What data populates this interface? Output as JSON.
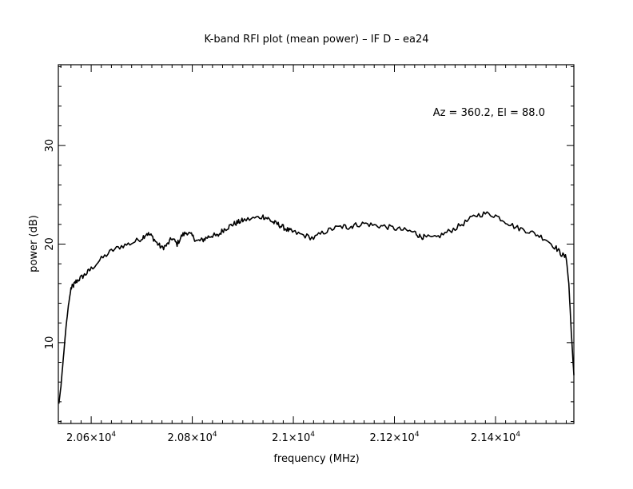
{
  "chart_data": {
    "type": "line",
    "title": "K-band RFI plot (mean power) – IF D – ea24",
    "annotation": "Az = 360.2, El = 88.0",
    "xlabel": "frequency (MHz)",
    "ylabel": "power (dB)",
    "xlim": [
      20535,
      21555
    ],
    "ylim": [
      1.8,
      38.2
    ],
    "x_ticks": [
      {
        "value": 20600,
        "label": "2.06×10",
        "exp": "4"
      },
      {
        "value": 20800,
        "label": "2.08×10",
        "exp": "4"
      },
      {
        "value": 21000,
        "label": "2.1×10",
        "exp": "4"
      },
      {
        "value": 21200,
        "label": "2.12×10",
        "exp": "4"
      },
      {
        "value": 21400,
        "label": "2.14×10",
        "exp": "4"
      }
    ],
    "y_ticks": [
      {
        "value": 10,
        "label": "10"
      },
      {
        "value": 20,
        "label": "20"
      },
      {
        "value": 30,
        "label": "30"
      }
    ],
    "grid": false,
    "series": [
      {
        "color": "#000000",
        "x": [
          20536,
          20540,
          20545,
          20550,
          20555,
          20560,
          20565,
          20570,
          20580,
          20590,
          20600,
          20620,
          20640,
          20660,
          20680,
          20700,
          20710,
          20720,
          20730,
          20740,
          20750,
          20760,
          20770,
          20780,
          20790,
          20800,
          20810,
          20820,
          20830,
          20840,
          20850,
          20860,
          20870,
          20880,
          20890,
          20900,
          20920,
          20940,
          20950,
          20960,
          20970,
          20980,
          20990,
          21000,
          21020,
          21040,
          21060,
          21080,
          21100,
          21110,
          21120,
          21140,
          21160,
          21180,
          21200,
          21220,
          21240,
          21250,
          21260,
          21280,
          21300,
          21320,
          21340,
          21360,
          21380,
          21400,
          21420,
          21440,
          21460,
          21480,
          21500,
          21520,
          21530,
          21540,
          21545,
          21550,
          21555
        ],
        "y": [
          3.8,
          5.5,
          8.5,
          11.5,
          13.8,
          15.5,
          15.8,
          16.2,
          16.6,
          17.0,
          17.5,
          18.5,
          19.3,
          19.8,
          20.1,
          20.6,
          21.1,
          20.8,
          20.1,
          19.6,
          19.9,
          20.6,
          20.0,
          20.9,
          21.2,
          20.8,
          20.3,
          20.4,
          20.7,
          20.9,
          20.8,
          21.4,
          21.7,
          22.0,
          22.2,
          22.4,
          22.6,
          22.8,
          22.6,
          22.2,
          22.0,
          21.7,
          21.4,
          21.2,
          20.9,
          20.6,
          21.2,
          21.6,
          21.8,
          21.7,
          21.9,
          22.1,
          21.9,
          21.8,
          21.6,
          21.4,
          21.2,
          20.8,
          20.7,
          20.6,
          21.1,
          21.6,
          22.2,
          22.9,
          23.1,
          22.9,
          22.3,
          21.7,
          21.4,
          21.0,
          20.5,
          19.6,
          19.0,
          18.6,
          16.0,
          11.0,
          6.7
        ]
      }
    ]
  }
}
